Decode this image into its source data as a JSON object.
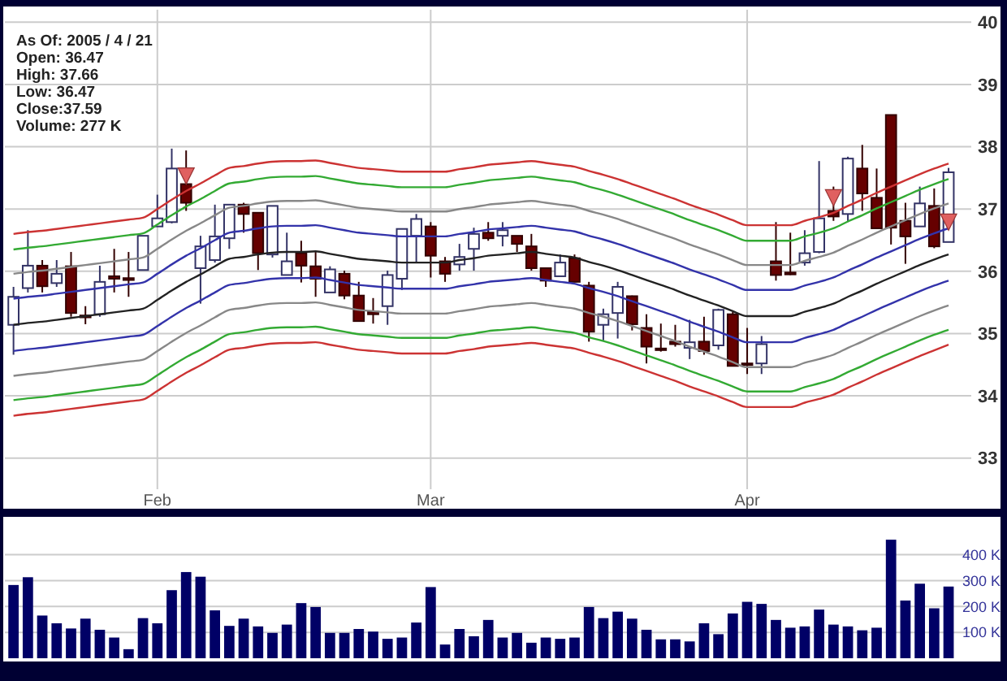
{
  "chart_data": [
    {
      "type": "candlestick",
      "annotations": [
        "As Of: 2005 / 4 / 21",
        "Open: 36.47",
        "High: 37.66",
        "Low: 36.47",
        "Close:37.59",
        "Volume: 277 K"
      ],
      "categories": [
        null,
        null,
        null,
        null,
        null,
        null,
        null,
        null,
        null,
        null,
        "Feb",
        null,
        null,
        null,
        null,
        null,
        null,
        null,
        null,
        null,
        null,
        null,
        null,
        null,
        null,
        null,
        null,
        null,
        null,
        "Mar",
        null,
        null,
        null,
        null,
        null,
        null,
        null,
        null,
        null,
        null,
        null,
        null,
        null,
        null,
        null,
        null,
        null,
        null,
        null,
        null,
        null,
        "Apr",
        null,
        null,
        null,
        null,
        null,
        null,
        null,
        null,
        null,
        null,
        null,
        null,
        null,
        null
      ],
      "ohlc": [
        [
          35.14,
          35.75,
          34.66,
          35.59
        ],
        [
          35.73,
          36.66,
          35.66,
          36.09
        ],
        [
          36.09,
          36.18,
          35.66,
          35.76
        ],
        [
          35.81,
          36.18,
          35.75,
          35.96
        ],
        [
          36.08,
          36.31,
          35.27,
          35.33
        ],
        [
          35.29,
          35.44,
          35.15,
          35.26
        ],
        [
          35.31,
          36.09,
          35.27,
          35.83
        ],
        [
          35.92,
          36.36,
          35.66,
          35.88
        ],
        [
          35.89,
          36.31,
          35.59,
          35.86
        ],
        [
          36.02,
          36.57,
          36.02,
          36.57
        ],
        [
          36.72,
          37.23,
          36.72,
          36.85
        ],
        [
          36.79,
          37.97,
          36.77,
          37.65
        ],
        [
          37.4,
          37.94,
          36.97,
          37.1
        ],
        [
          36.05,
          36.57,
          35.48,
          36.4
        ],
        [
          36.18,
          37.07,
          36.14,
          36.56
        ],
        [
          36.53,
          37.07,
          36.36,
          37.07
        ],
        [
          37.07,
          37.1,
          36.62,
          36.92
        ],
        [
          36.94,
          36.94,
          36.02,
          36.29
        ],
        [
          36.27,
          37.05,
          36.22,
          37.05
        ],
        [
          35.94,
          36.62,
          35.94,
          36.16
        ],
        [
          36.29,
          36.49,
          35.82,
          36.09
        ],
        [
          36.08,
          36.31,
          35.59,
          35.88
        ],
        [
          35.66,
          36.08,
          35.66,
          36.03
        ],
        [
          35.96,
          36.01,
          35.55,
          35.61
        ],
        [
          35.61,
          35.83,
          35.2,
          35.2
        ],
        [
          35.35,
          35.57,
          35.16,
          35.31
        ],
        [
          35.44,
          36.01,
          35.14,
          35.94
        ],
        [
          35.88,
          36.68,
          35.7,
          36.68
        ],
        [
          36.57,
          36.92,
          36.14,
          36.84
        ],
        [
          36.72,
          36.79,
          35.9,
          36.25
        ],
        [
          36.16,
          36.23,
          35.83,
          35.96
        ],
        [
          36.11,
          36.44,
          36.01,
          36.23
        ],
        [
          36.36,
          36.7,
          36.01,
          36.6
        ],
        [
          36.62,
          36.79,
          36.49,
          36.53
        ],
        [
          36.57,
          36.79,
          36.4,
          36.66
        ],
        [
          36.57,
          36.57,
          36.31,
          36.44
        ],
        [
          36.4,
          36.6,
          36.01,
          36.05
        ],
        [
          36.05,
          36.05,
          35.75,
          35.85
        ],
        [
          35.92,
          36.27,
          35.92,
          36.14
        ],
        [
          36.21,
          36.27,
          35.83,
          35.83
        ],
        [
          35.77,
          35.83,
          34.87,
          35.03
        ],
        [
          35.14,
          35.4,
          34.89,
          35.31
        ],
        [
          35.33,
          35.83,
          34.92,
          35.75
        ],
        [
          35.6,
          35.61,
          35.05,
          35.15
        ],
        [
          35.09,
          35.31,
          34.52,
          34.79
        ],
        [
          34.76,
          35.16,
          34.71,
          34.74
        ],
        [
          34.87,
          35.14,
          34.79,
          34.83
        ],
        [
          34.77,
          35.22,
          34.59,
          34.86
        ],
        [
          34.87,
          35.27,
          34.66,
          34.72
        ],
        [
          34.81,
          35.4,
          34.74,
          35.38
        ],
        [
          35.31,
          35.35,
          34.48,
          34.48
        ],
        [
          34.52,
          35.09,
          34.35,
          34.5
        ],
        [
          34.52,
          34.96,
          34.35,
          34.83
        ],
        [
          36.16,
          36.79,
          35.85,
          35.94
        ],
        [
          35.98,
          36.62,
          35.94,
          35.95
        ],
        [
          36.14,
          36.66,
          36.09,
          36.29
        ],
        [
          36.31,
          37.77,
          36.29,
          36.85
        ],
        [
          36.97,
          37.36,
          36.81,
          36.88
        ],
        [
          36.92,
          37.84,
          36.79,
          37.81
        ],
        [
          37.65,
          38.03,
          36.97,
          37.25
        ],
        [
          37.18,
          37.65,
          36.69,
          36.69
        ],
        [
          38.51,
          38.51,
          36.43,
          36.7
        ],
        [
          36.81,
          37.1,
          36.12,
          36.56
        ],
        [
          36.72,
          37.36,
          36.72,
          37.09
        ],
        [
          37.05,
          37.33,
          36.37,
          36.4
        ],
        [
          36.47,
          37.66,
          36.47,
          37.59
        ]
      ],
      "series": [
        {
          "type": "line",
          "color": "#cc3333",
          "values": [
            36.6,
            36.63,
            36.65,
            36.68,
            36.71,
            36.74,
            36.77,
            36.8,
            36.83,
            36.86,
            37.0,
            37.15,
            37.29,
            37.41,
            37.54,
            37.66,
            37.69,
            37.73,
            37.76,
            37.77,
            37.77,
            37.78,
            37.74,
            37.7,
            37.66,
            37.64,
            37.62,
            37.6,
            37.6,
            37.6,
            37.6,
            37.64,
            37.67,
            37.71,
            37.73,
            37.75,
            37.77,
            37.74,
            37.71,
            37.68,
            37.61,
            37.55,
            37.48,
            37.4,
            37.32,
            37.24,
            37.16,
            37.07,
            36.99,
            36.91,
            36.82,
            36.74,
            36.74,
            36.74,
            36.74,
            36.81,
            36.87,
            36.94,
            37.05,
            37.15,
            37.26,
            37.36,
            37.46,
            37.56,
            37.65,
            37.73
          ]
        },
        {
          "type": "line",
          "color": "#33aa33",
          "values": [
            36.35,
            36.38,
            36.4,
            36.43,
            36.46,
            36.49,
            36.52,
            36.55,
            36.58,
            36.61,
            36.75,
            36.9,
            37.04,
            37.16,
            37.29,
            37.41,
            37.44,
            37.48,
            37.51,
            37.52,
            37.52,
            37.53,
            37.49,
            37.45,
            37.41,
            37.39,
            37.37,
            37.35,
            37.35,
            37.35,
            37.35,
            37.39,
            37.42,
            37.46,
            37.48,
            37.5,
            37.52,
            37.49,
            37.46,
            37.43,
            37.36,
            37.3,
            37.23,
            37.15,
            37.07,
            36.99,
            36.91,
            36.82,
            36.74,
            36.66,
            36.57,
            36.49,
            36.49,
            36.49,
            36.49,
            36.56,
            36.62,
            36.69,
            36.8,
            36.9,
            37.01,
            37.11,
            37.21,
            37.31,
            37.4,
            37.48
          ]
        },
        {
          "type": "line",
          "color": "#888888",
          "values": [
            35.96,
            35.99,
            36.01,
            36.04,
            36.07,
            36.1,
            36.13,
            36.16,
            36.19,
            36.22,
            36.36,
            36.51,
            36.65,
            36.77,
            36.9,
            37.02,
            37.05,
            37.09,
            37.12,
            37.13,
            37.13,
            37.14,
            37.1,
            37.06,
            37.02,
            37.0,
            36.98,
            36.96,
            36.96,
            36.96,
            36.96,
            37.0,
            37.03,
            37.07,
            37.09,
            37.11,
            37.13,
            37.1,
            37.07,
            37.04,
            36.97,
            36.91,
            36.84,
            36.76,
            36.68,
            36.6,
            36.52,
            36.43,
            36.35,
            36.27,
            36.18,
            36.1,
            36.1,
            36.1,
            36.1,
            36.17,
            36.23,
            36.3,
            36.41,
            36.51,
            36.62,
            36.72,
            36.82,
            36.92,
            37.01,
            37.09
          ]
        },
        {
          "type": "line",
          "color": "#3333aa",
          "values": [
            35.56,
            35.59,
            35.61,
            35.64,
            35.67,
            35.7,
            35.73,
            35.76,
            35.79,
            35.82,
            35.96,
            36.11,
            36.25,
            36.37,
            36.5,
            36.62,
            36.65,
            36.69,
            36.72,
            36.73,
            36.73,
            36.74,
            36.7,
            36.66,
            36.62,
            36.6,
            36.58,
            36.56,
            36.56,
            36.56,
            36.56,
            36.6,
            36.63,
            36.67,
            36.69,
            36.71,
            36.73,
            36.7,
            36.67,
            36.64,
            36.57,
            36.51,
            36.44,
            36.36,
            36.28,
            36.2,
            36.12,
            36.03,
            35.95,
            35.87,
            35.78,
            35.7,
            35.7,
            35.7,
            35.7,
            35.77,
            35.83,
            35.9,
            36.01,
            36.11,
            36.22,
            36.32,
            36.42,
            36.52,
            36.61,
            36.69
          ]
        },
        {
          "type": "line",
          "color": "#222222",
          "values": [
            35.14,
            35.17,
            35.19,
            35.22,
            35.25,
            35.28,
            35.31,
            35.34,
            35.37,
            35.4,
            35.54,
            35.69,
            35.83,
            35.95,
            36.08,
            36.2,
            36.23,
            36.27,
            36.3,
            36.31,
            36.31,
            36.32,
            36.28,
            36.24,
            36.2,
            36.18,
            36.16,
            36.14,
            36.14,
            36.14,
            36.14,
            36.18,
            36.21,
            36.25,
            36.27,
            36.29,
            36.31,
            36.28,
            36.25,
            36.22,
            36.15,
            36.09,
            36.02,
            35.94,
            35.86,
            35.78,
            35.7,
            35.61,
            35.53,
            35.45,
            35.36,
            35.28,
            35.28,
            35.28,
            35.28,
            35.35,
            35.41,
            35.48,
            35.59,
            35.69,
            35.8,
            35.9,
            36.0,
            36.1,
            36.19,
            36.27
          ]
        },
        {
          "type": "line",
          "color": "#3333aa",
          "values": [
            34.72,
            34.75,
            34.77,
            34.8,
            34.83,
            34.86,
            34.89,
            34.92,
            34.95,
            34.98,
            35.12,
            35.27,
            35.41,
            35.53,
            35.66,
            35.78,
            35.81,
            35.85,
            35.88,
            35.89,
            35.89,
            35.9,
            35.86,
            35.82,
            35.78,
            35.76,
            35.74,
            35.72,
            35.72,
            35.72,
            35.72,
            35.76,
            35.79,
            35.83,
            35.85,
            35.87,
            35.89,
            35.86,
            35.83,
            35.8,
            35.73,
            35.67,
            35.6,
            35.52,
            35.44,
            35.36,
            35.28,
            35.19,
            35.11,
            35.03,
            34.94,
            34.86,
            34.86,
            34.86,
            34.86,
            34.93,
            34.99,
            35.06,
            35.17,
            35.27,
            35.38,
            35.48,
            35.58,
            35.68,
            35.77,
            35.85
          ]
        },
        {
          "type": "line",
          "color": "#888888",
          "values": [
            34.32,
            34.35,
            34.37,
            34.4,
            34.43,
            34.46,
            34.49,
            34.52,
            34.55,
            34.58,
            34.72,
            34.87,
            35.01,
            35.13,
            35.26,
            35.38,
            35.41,
            35.45,
            35.48,
            35.49,
            35.49,
            35.5,
            35.46,
            35.42,
            35.38,
            35.36,
            35.34,
            35.32,
            35.32,
            35.32,
            35.32,
            35.36,
            35.39,
            35.43,
            35.45,
            35.47,
            35.49,
            35.46,
            35.43,
            35.4,
            35.33,
            35.27,
            35.2,
            35.12,
            35.04,
            34.96,
            34.88,
            34.79,
            34.71,
            34.63,
            34.54,
            34.46,
            34.46,
            34.46,
            34.46,
            34.53,
            34.59,
            34.66,
            34.77,
            34.87,
            34.98,
            35.08,
            35.18,
            35.28,
            35.37,
            35.45
          ]
        },
        {
          "type": "line",
          "color": "#33aa33",
          "values": [
            33.93,
            33.96,
            33.98,
            34.01,
            34.04,
            34.07,
            34.1,
            34.13,
            34.16,
            34.19,
            34.33,
            34.48,
            34.62,
            34.74,
            34.87,
            34.99,
            35.02,
            35.06,
            35.09,
            35.1,
            35.1,
            35.11,
            35.07,
            35.03,
            34.99,
            34.97,
            34.95,
            34.93,
            34.93,
            34.93,
            34.93,
            34.97,
            35.0,
            35.04,
            35.06,
            35.08,
            35.1,
            35.07,
            35.04,
            35.01,
            34.94,
            34.88,
            34.81,
            34.73,
            34.65,
            34.57,
            34.49,
            34.4,
            34.32,
            34.24,
            34.15,
            34.07,
            34.07,
            34.07,
            34.07,
            34.14,
            34.2,
            34.27,
            34.38,
            34.48,
            34.59,
            34.69,
            34.79,
            34.89,
            34.98,
            35.06
          ]
        },
        {
          "type": "line",
          "color": "#cc3333",
          "values": [
            33.68,
            33.71,
            33.73,
            33.76,
            33.79,
            33.82,
            33.85,
            33.88,
            33.91,
            33.94,
            34.08,
            34.23,
            34.37,
            34.49,
            34.62,
            34.74,
            34.77,
            34.81,
            34.84,
            34.85,
            34.85,
            34.86,
            34.82,
            34.78,
            34.74,
            34.72,
            34.7,
            34.68,
            34.68,
            34.68,
            34.68,
            34.72,
            34.75,
            34.79,
            34.81,
            34.83,
            34.85,
            34.82,
            34.79,
            34.76,
            34.69,
            34.63,
            34.56,
            34.48,
            34.4,
            34.32,
            34.24,
            34.15,
            34.07,
            33.99,
            33.9,
            33.82,
            33.82,
            33.82,
            33.82,
            33.89,
            33.95,
            34.02,
            34.13,
            34.23,
            34.34,
            34.44,
            34.54,
            34.64,
            34.73,
            34.82
          ]
        },
        {
          "type": "scatter",
          "marker": "triangle",
          "color": "#e06060",
          "values": [
            null,
            null,
            null,
            null,
            null,
            null,
            null,
            null,
            null,
            null,
            null,
            null,
            37.53,
            null,
            null,
            null,
            null,
            null,
            null,
            null,
            null,
            null,
            null,
            null,
            null,
            null,
            null,
            null,
            null,
            null,
            null,
            null,
            null,
            null,
            null,
            null,
            null,
            null,
            null,
            null,
            null,
            null,
            null,
            null,
            null,
            null,
            null,
            null,
            null,
            null,
            null,
            null,
            null,
            null,
            null,
            null,
            null,
            37.18,
            null,
            null,
            null,
            null,
            null,
            null,
            null,
            36.79
          ]
        }
      ],
      "ylim": [
        32.5,
        40.2
      ],
      "yticks": [
        33,
        34,
        35,
        36,
        37,
        38,
        39,
        40
      ],
      "grid": true
    },
    {
      "type": "bar",
      "categories": [
        null,
        null,
        null,
        null,
        null,
        null,
        null,
        null,
        null,
        null,
        null,
        null,
        null,
        null,
        null,
        null,
        null,
        null,
        null,
        null,
        null,
        null,
        null,
        null,
        null,
        null,
        null,
        null,
        null,
        null,
        null,
        null,
        null,
        null,
        null,
        null,
        null,
        null,
        null,
        null,
        null,
        null,
        null,
        null,
        null,
        null,
        null,
        null,
        null,
        null,
        null,
        null,
        null,
        null,
        null,
        null,
        null,
        null,
        null,
        null,
        null,
        null,
        null,
        null,
        null,
        null
      ],
      "values": [
        283,
        313,
        165,
        135,
        115,
        153,
        110,
        80,
        35,
        155,
        135,
        263,
        333,
        315,
        185,
        125,
        153,
        123,
        98,
        130,
        213,
        198,
        98,
        98,
        113,
        103,
        75,
        80,
        138,
        275,
        53,
        113,
        85,
        148,
        80,
        98,
        60,
        80,
        75,
        80,
        198,
        155,
        180,
        153,
        110,
        73,
        73,
        65,
        135,
        93,
        173,
        218,
        210,
        148,
        118,
        123,
        188,
        130,
        123,
        108,
        118,
        458,
        223,
        288,
        193,
        277
      ],
      "color": "#000066",
      "ylim": [
        0,
        540
      ],
      "yticks": [
        {
          "value": 100,
          "label": "100 K"
        },
        {
          "value": 200,
          "label": "200 K"
        },
        {
          "value": 300,
          "label": "300 K"
        },
        {
          "value": 400,
          "label": "400 K"
        }
      ],
      "grid": "y"
    }
  ]
}
